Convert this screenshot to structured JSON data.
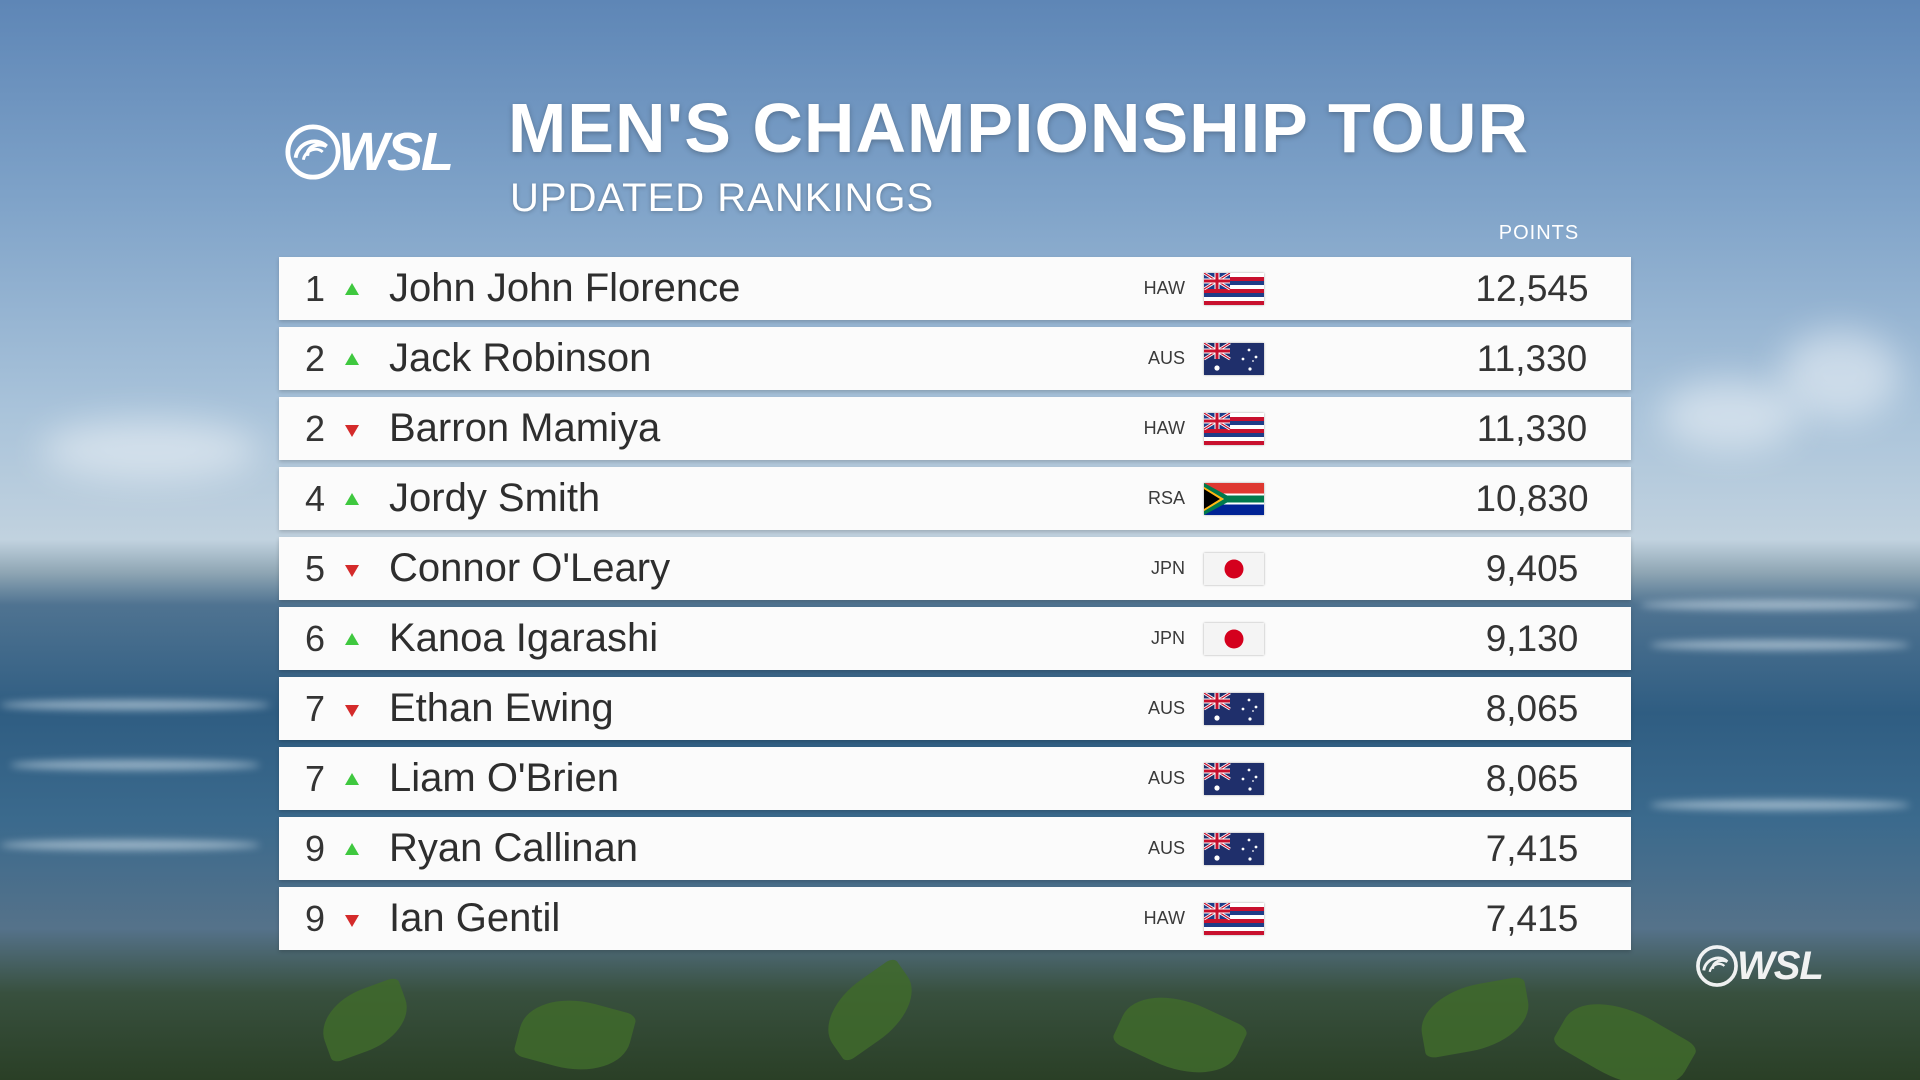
{
  "header": {
    "logo_text": "WSL",
    "title": "MEN'S CHAMPIONSHIP TOUR",
    "subtitle": "UPDATED RANKINGS",
    "points_label": "POINTS"
  },
  "rankings": [
    {
      "rank": "1",
      "movement": "up",
      "name": "John John Florence",
      "country": "HAW",
      "flag": "hawaii-flag",
      "points": "12,545"
    },
    {
      "rank": "2",
      "movement": "up",
      "name": "Jack Robinson",
      "country": "AUS",
      "flag": "australia-flag",
      "points": "11,330"
    },
    {
      "rank": "2",
      "movement": "down",
      "name": "Barron Mamiya",
      "country": "HAW",
      "flag": "hawaii-flag",
      "points": "11,330"
    },
    {
      "rank": "4",
      "movement": "up",
      "name": "Jordy Smith",
      "country": "RSA",
      "flag": "south-africa-flag",
      "points": "10,830"
    },
    {
      "rank": "5",
      "movement": "down",
      "name": "Connor O'Leary",
      "country": "JPN",
      "flag": "japan-flag",
      "points": "9,405"
    },
    {
      "rank": "6",
      "movement": "up",
      "name": "Kanoa Igarashi",
      "country": "JPN",
      "flag": "japan-flag",
      "points": "9,130"
    },
    {
      "rank": "7",
      "movement": "down",
      "name": "Ethan Ewing",
      "country": "AUS",
      "flag": "australia-flag",
      "points": "8,065"
    },
    {
      "rank": "7",
      "movement": "up",
      "name": "Liam O'Brien",
      "country": "AUS",
      "flag": "australia-flag",
      "points": "8,065"
    },
    {
      "rank": "9",
      "movement": "up",
      "name": "Ryan Callinan",
      "country": "AUS",
      "flag": "australia-flag",
      "points": "7,415"
    },
    {
      "rank": "9",
      "movement": "down",
      "name": "Ian Gentil",
      "country": "HAW",
      "flag": "hawaii-flag",
      "points": "7,415"
    }
  ],
  "watermark": {
    "logo_text": "WSL"
  },
  "colors": {
    "row_background": "#fbfbfb",
    "arrow_up": "#3fc83f",
    "arrow_down": "#d42a2a",
    "text": "#2e2e2e"
  }
}
